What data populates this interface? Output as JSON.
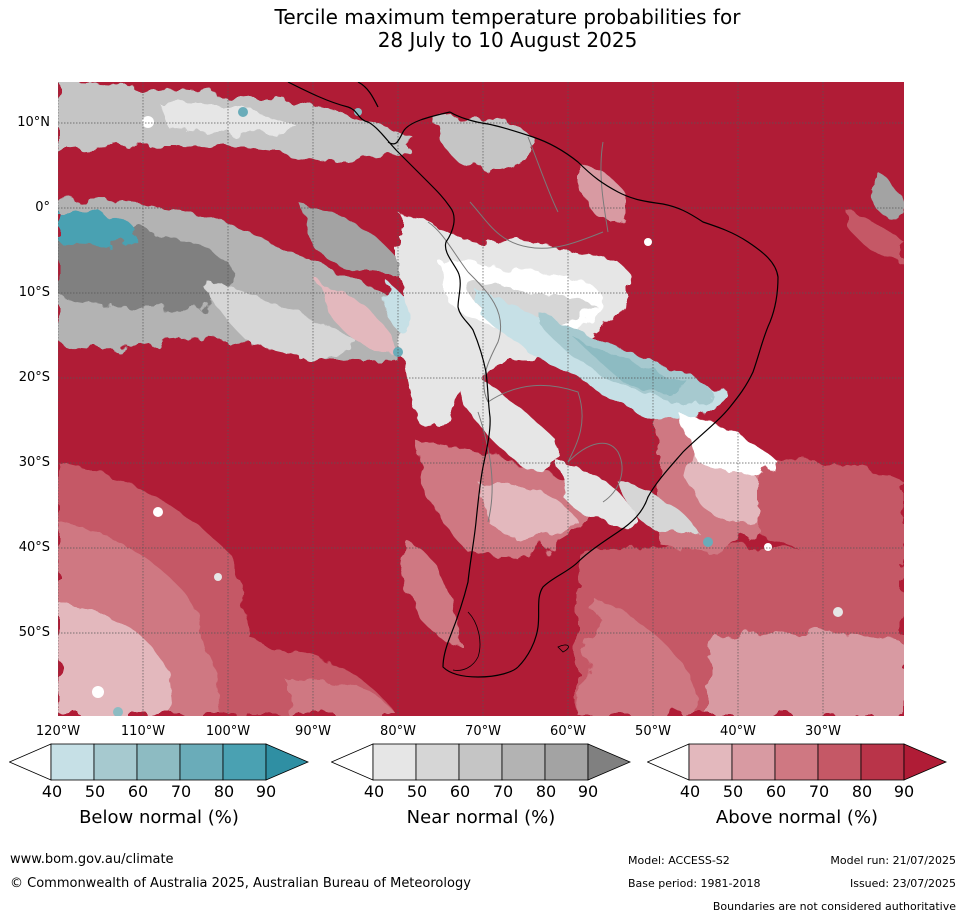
{
  "title": {
    "line1": "Tercile maximum temperature probabilities for",
    "line2": "28 July to 10 August 2025"
  },
  "map": {
    "lat_labels": [
      "10°N",
      "0°",
      "10°S",
      "20°S",
      "30°S",
      "40°S",
      "50°S"
    ],
    "lon_labels": [
      "120°W",
      "110°W",
      "100°W",
      "90°W",
      "80°W",
      "70°W",
      "60°W",
      "50°W",
      "40°W",
      "30°W"
    ]
  },
  "colorbars": {
    "ticks": [
      "40",
      "50",
      "60",
      "70",
      "80",
      "90"
    ],
    "below": {
      "title": "Below normal (%)",
      "colors": [
        "#ffffff",
        "#c6e0e6",
        "#a6c9cf",
        "#8dbbc2",
        "#6aacb9",
        "#4aa1b2",
        "#2f8fa3"
      ]
    },
    "near": {
      "title": "Near normal (%)",
      "colors": [
        "#ffffff",
        "#e6e6e6",
        "#d6d6d6",
        "#c5c5c5",
        "#b3b3b3",
        "#a3a3a3",
        "#808080"
      ]
    },
    "above": {
      "title": "Above normal (%)",
      "colors": [
        "#ffffff",
        "#e3b8bd",
        "#d89aa2",
        "#cf7882",
        "#c55866",
        "#b93449",
        "#b01c36"
      ]
    }
  },
  "footer": {
    "website": "www.bom.gov.au/climate",
    "copyright": "© Commonwealth of Australia 2025, Australian Bureau of Meteorology",
    "model": "Model: ACCESS-S2",
    "base_period": "Base period: 1981-2018",
    "model_run": "Model run: 21/07/2025",
    "issued": "Issued: 23/07/2025",
    "disclaimer": "Boundaries are not considered authoritative"
  }
}
